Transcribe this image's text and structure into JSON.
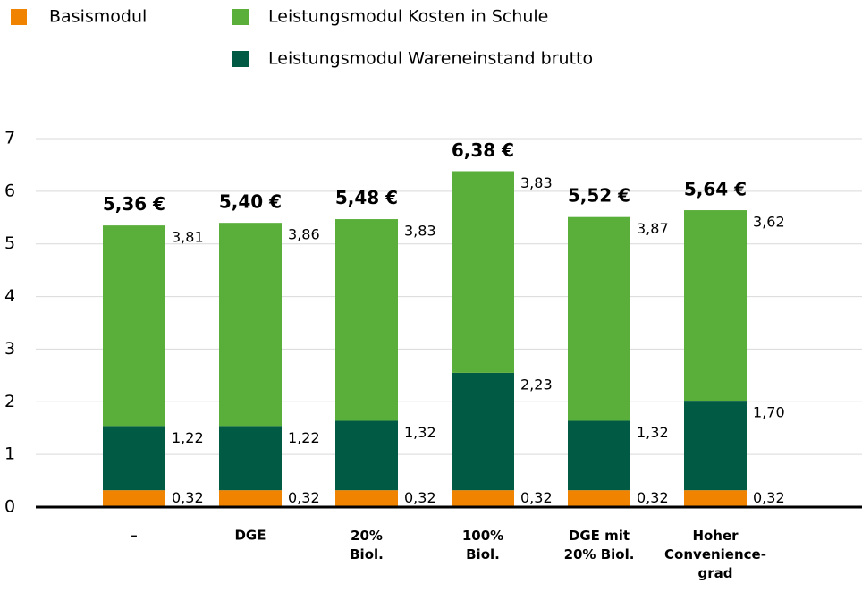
{
  "chart_data": {
    "type": "stacked-bar",
    "categories": [
      "–",
      "DGE",
      "20%\nBiol.",
      "100%\nBiol.",
      "DGE mit\n20% Biol.",
      "Hoher\nConvenience-\ngrad"
    ],
    "series": [
      {
        "name": "Basismodul",
        "color": "#f08300",
        "values": [
          0.32,
          0.32,
          0.32,
          0.32,
          0.32,
          0.32
        ],
        "value_labels": [
          "0,32",
          "0,32",
          "0,32",
          "0,32",
          "0,32",
          "0,32"
        ]
      },
      {
        "name": "Leistungsmodul Wareneinstand brutto",
        "color": "#005a44",
        "values": [
          1.22,
          1.22,
          1.32,
          2.23,
          1.32,
          1.7
        ],
        "value_labels": [
          "1,22",
          "1,22",
          "1,32",
          "2,23",
          "1,32",
          "1,70"
        ]
      },
      {
        "name": "Leistungsmodul Kosten in Schule",
        "color": "#5aae3a",
        "values": [
          3.81,
          3.86,
          3.83,
          3.83,
          3.87,
          3.62
        ],
        "value_labels": [
          "3,81",
          "3,86",
          "3,83",
          "3,83",
          "3,87",
          "3,62"
        ]
      }
    ],
    "totals": {
      "values": [
        5.36,
        5.4,
        5.48,
        6.38,
        5.52,
        5.64
      ],
      "value_labels": [
        "5,36 €",
        "5,40 €",
        "5,48 €",
        "6,38 €",
        "5,52 €",
        "5,64 €"
      ]
    },
    "ylim": [
      0,
      7
    ],
    "yticks": [
      0,
      1,
      2,
      3,
      4,
      5,
      6,
      7
    ],
    "grid": true
  }
}
